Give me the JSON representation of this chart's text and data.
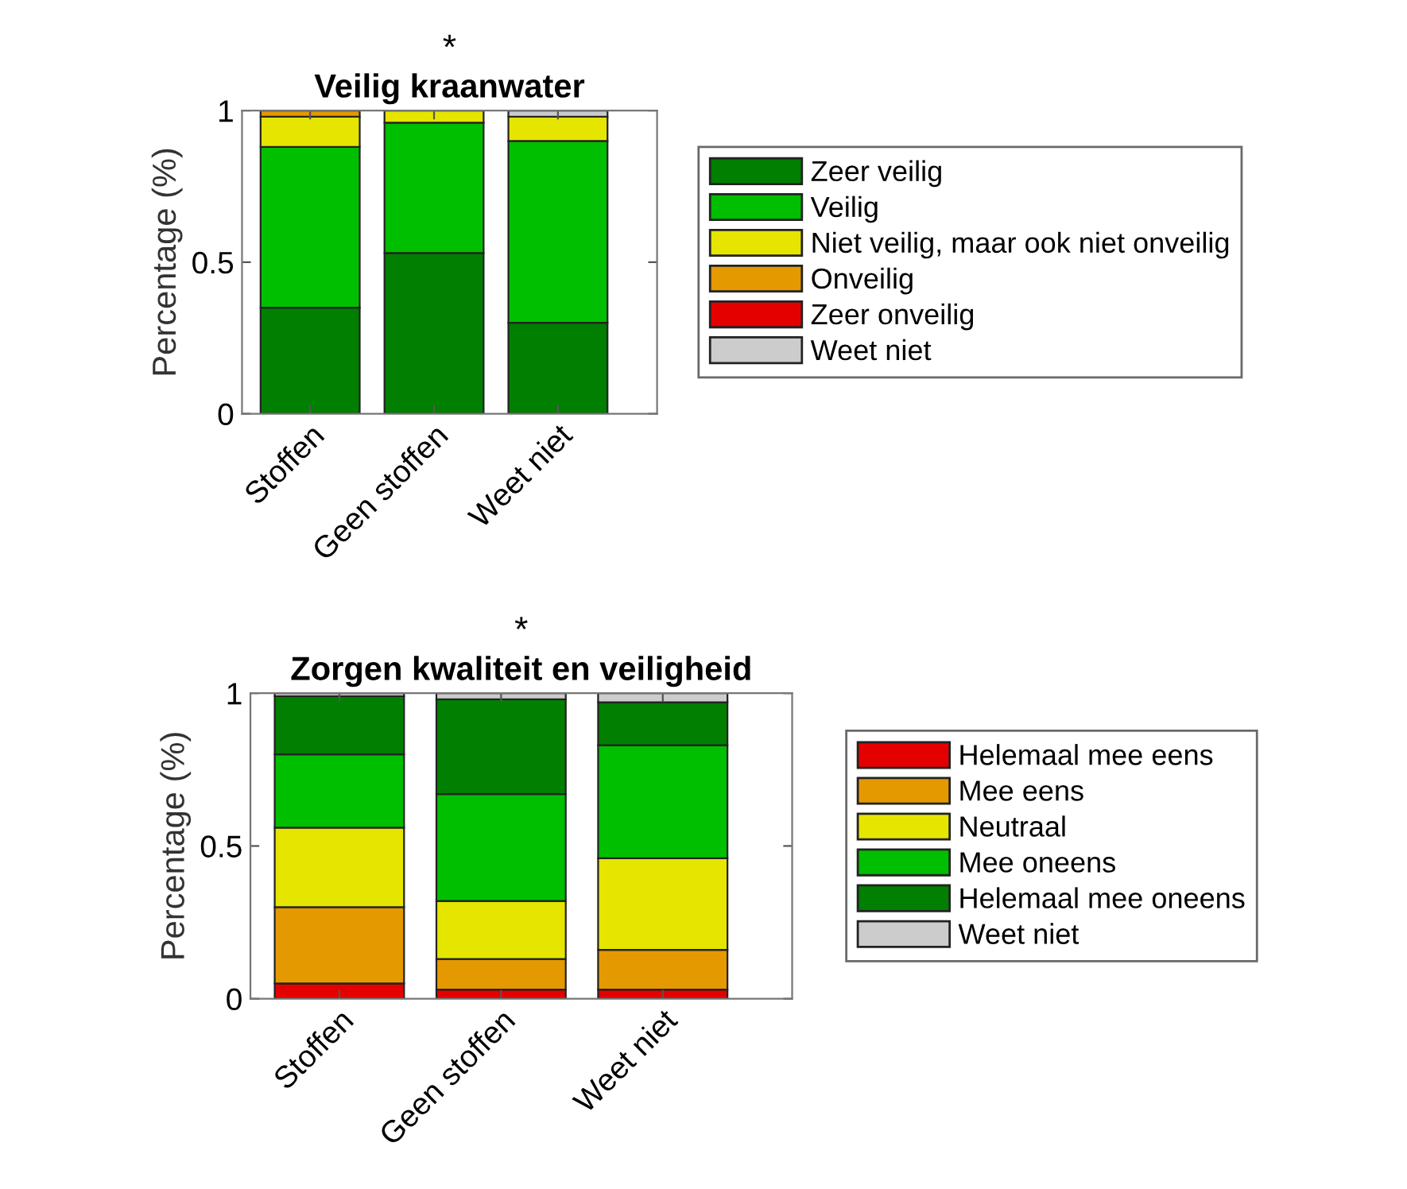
{
  "chart_data": [
    {
      "type": "bar",
      "stacked": true,
      "title": "Veilig kraanwater",
      "ylabel": "Percentage (%)",
      "annotations": [
        "*"
      ],
      "categories": [
        "Stoffen",
        "Geen stoffen",
        "Weet niet"
      ],
      "series": [
        {
          "name": "Zeer veilig",
          "color": "#007f00",
          "values": [
            0.35,
            0.53,
            0.3
          ]
        },
        {
          "name": "Veilig",
          "color": "#00bf00",
          "values": [
            0.53,
            0.43,
            0.6
          ]
        },
        {
          "name": "Niet veilig, maar ook niet onveilig",
          "color": "#e5e500",
          "values": [
            0.1,
            0.04,
            0.08
          ]
        },
        {
          "name": "Onveilig",
          "color": "#e59900",
          "values": [
            0.02,
            null,
            null
          ]
        },
        {
          "name": "Zeer onveilig",
          "color": "#e50000",
          "values": [
            null,
            null,
            null
          ]
        },
        {
          "name": "Weet niet",
          "color": "#cccccc",
          "values": [
            null,
            null,
            0.02
          ]
        }
      ],
      "ylim": [
        0,
        1
      ],
      "yticks": [
        0,
        0.5,
        1
      ],
      "legend": "right",
      "grid": false
    },
    {
      "type": "bar",
      "stacked": true,
      "title": "Zorgen kwaliteit en veiligheid",
      "ylabel": "Percentage (%)",
      "annotations": [
        "*"
      ],
      "categories": [
        "Stoffen",
        "Geen stoffen",
        "Weet niet"
      ],
      "series": [
        {
          "name": "Helemaal mee eens",
          "color": "#e50000",
          "values": [
            0.05,
            0.03,
            0.03
          ]
        },
        {
          "name": "Mee eens",
          "color": "#e59900",
          "values": [
            0.25,
            0.1,
            0.13
          ]
        },
        {
          "name": "Neutraal",
          "color": "#e5e500",
          "values": [
            0.26,
            0.19,
            0.3
          ]
        },
        {
          "name": "Mee oneens",
          "color": "#00bf00",
          "values": [
            0.24,
            0.35,
            0.37
          ]
        },
        {
          "name": "Helemaal mee oneens",
          "color": "#007f00",
          "values": [
            0.19,
            0.31,
            0.14
          ]
        },
        {
          "name": "Weet niet",
          "color": "#cccccc",
          "values": [
            0.01,
            0.02,
            0.03
          ]
        }
      ],
      "ylim": [
        0,
        1
      ],
      "yticks": [
        0,
        0.5,
        1
      ],
      "legend": "right",
      "grid": false
    }
  ]
}
